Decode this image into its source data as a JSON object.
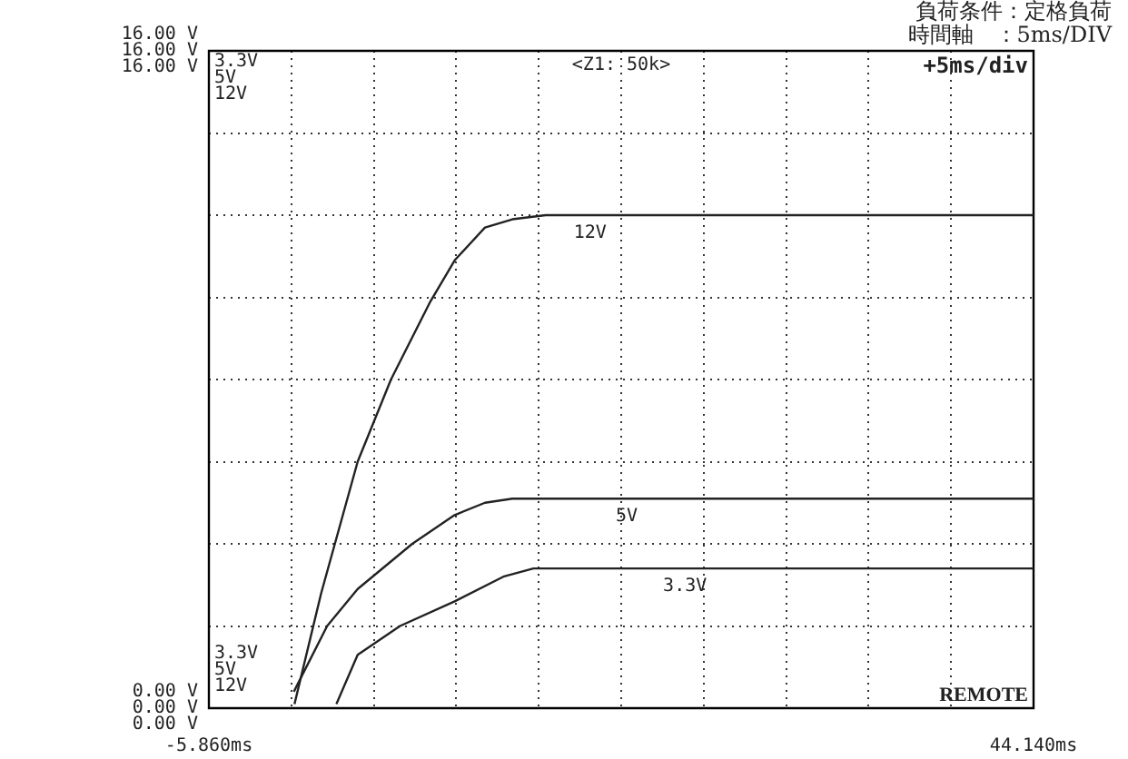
{
  "chart_data": {
    "type": "line",
    "marker": "none",
    "grid": true,
    "xlim": [
      -5.86,
      44.14
    ],
    "xticks": [
      {
        "value": -5.86,
        "label": "-5.860ms"
      },
      {
        "value": -0.86,
        "label": null
      },
      {
        "value": 4.14,
        "label": null
      },
      {
        "value": 9.14,
        "label": null
      },
      {
        "value": 14.14,
        "label": null
      },
      {
        "value": 19.14,
        "label": null
      },
      {
        "value": 24.14,
        "label": null
      },
      {
        "value": 29.14,
        "label": null
      },
      {
        "value": 34.14,
        "label": null
      },
      {
        "value": 39.14,
        "label": null
      },
      {
        "value": 44.14,
        "label": "44.140ms"
      }
    ],
    "ylim": [
      0,
      16
    ],
    "yticks": [
      {
        "value": 0,
        "label": "0.00 V"
      },
      {
        "value": 2,
        "label": null
      },
      {
        "value": 4,
        "label": null
      },
      {
        "value": 6,
        "label": null
      },
      {
        "value": 8,
        "label": null
      },
      {
        "value": 10,
        "label": null
      },
      {
        "value": 12,
        "label": null
      },
      {
        "value": 14,
        "label": null
      },
      {
        "value": 16,
        "label": "16.00 V"
      }
    ],
    "series": [
      {
        "name": "3.3V",
        "color": "#222222",
        "x": [
          1.87,
          3.16,
          5.73,
          9.04,
          11.99,
          13.82,
          44.14
        ],
        "values": [
          0.1,
          1.3,
          2.0,
          2.6,
          3.2,
          3.4,
          3.4
        ]
      },
      {
        "name": "5V",
        "color": "#222222",
        "x": [
          -0.71,
          1.31,
          3.16,
          6.47,
          9.04,
          10.88,
          12.54,
          44.14
        ],
        "values": [
          0.4,
          2.0,
          2.9,
          4.0,
          4.7,
          5.0,
          5.1,
          5.1
        ]
      },
      {
        "name": "12V",
        "color": "#222222",
        "x": [
          -0.67,
          0.95,
          3.16,
          5.18,
          7.57,
          9.04,
          10.88,
          12.54,
          14.56,
          44.14
        ],
        "values": [
          0.1,
          2.8,
          6.0,
          8.0,
          9.9,
          10.9,
          11.7,
          11.9,
          12.0,
          12.0
        ]
      }
    ],
    "annotations": [
      "<Z1: 50k>",
      "+5ms/div",
      "REMOTE",
      "負荷条件：定格負荷",
      "時間軸　：5ms/DIV"
    ]
  }
}
